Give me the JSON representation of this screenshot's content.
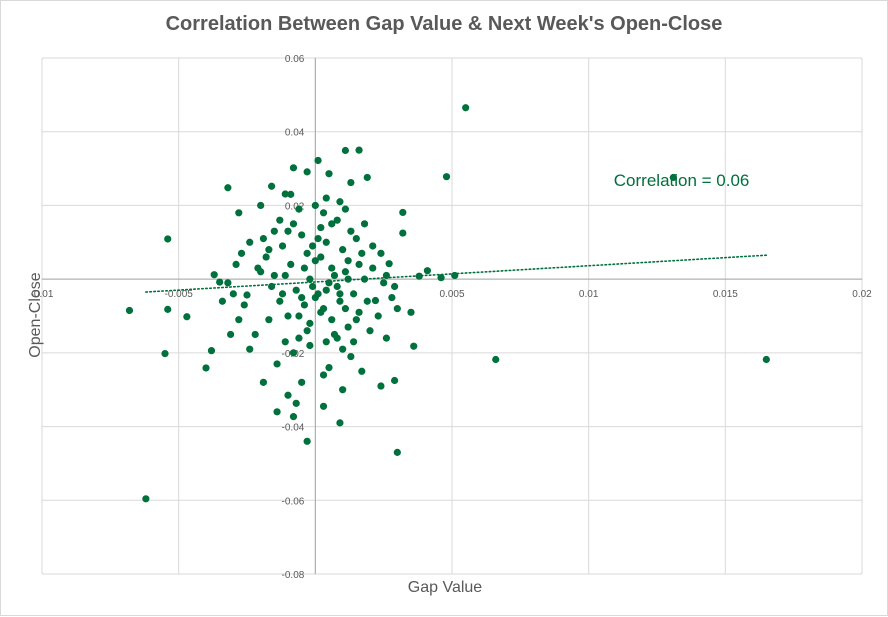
{
  "chart_data": {
    "type": "scatter",
    "title": "Correlation Between Gap Value & Next Week's Open-Close",
    "xlabel": "Gap Value",
    "ylabel": "Open-Close",
    "xlim": [
      -0.01,
      0.02
    ],
    "ylim": [
      -0.08,
      0.06
    ],
    "x_ticks": [
      -0.01,
      -0.005,
      0,
      0.005,
      0.01,
      0.015,
      0.02
    ],
    "x_tick_labels": [
      "-0.01",
      "-0.005",
      "",
      "0.005",
      "0.01",
      "0.015",
      "0.02"
    ],
    "y_ticks": [
      -0.08,
      -0.06,
      -0.04,
      -0.02,
      0,
      0.02,
      0.04,
      0.06
    ],
    "y_tick_labels": [
      "-0.08",
      "-0.06",
      "-0.04",
      "-0.02",
      "",
      "0.02",
      "0.04",
      "0.06"
    ],
    "grid": true,
    "legend": "none",
    "marker_color": "#00703c",
    "trendline": {
      "type": "linear",
      "style": "dotted",
      "points": [
        [
          -0.0062,
          -0.0035
        ],
        [
          0.0165,
          0.0065
        ]
      ]
    },
    "annotation": {
      "text": "Correlation = 0.06",
      "x": 0.0134,
      "y": 0.0253
    },
    "series": [
      {
        "points": [
          [
            0.0055,
            0.0465
          ],
          [
            0.0048,
            0.0278
          ],
          [
            0.0131,
            0.0276
          ],
          [
            0.0011,
            0.0349
          ],
          [
            0.0016,
            0.035
          ],
          [
            0.0001,
            0.0322
          ],
          [
            -0.0008,
            0.0302
          ],
          [
            -0.0003,
            0.0291
          ],
          [
            0.0005,
            0.0286
          ],
          [
            0.0019,
            0.0276
          ],
          [
            -0.0032,
            0.0248
          ],
          [
            -0.0016,
            0.0252
          ],
          [
            -0.0011,
            0.0231
          ],
          [
            0.0013,
            0.0262
          ],
          [
            0.0032,
            0.0181
          ],
          [
            -0.0054,
            0.0109
          ],
          [
            -0.0068,
            -0.0085
          ],
          [
            -0.0054,
            -0.0082
          ],
          [
            -0.0047,
            -0.0102
          ],
          [
            -0.0055,
            -0.0202
          ],
          [
            -0.0038,
            -0.0194
          ],
          [
            -0.004,
            -0.0241
          ],
          [
            -0.0062,
            -0.0596
          ],
          [
            0.0066,
            -0.0218
          ],
          [
            0.0165,
            -0.0218
          ],
          [
            0.003,
            -0.047
          ],
          [
            -0.0003,
            -0.044
          ],
          [
            0.0009,
            -0.039
          ],
          [
            -0.0014,
            -0.036
          ],
          [
            -0.0008,
            -0.0373
          ],
          [
            0.0003,
            -0.0345
          ],
          [
            -0.0007,
            -0.0337
          ],
          [
            0.0029,
            -0.0275
          ],
          [
            0.0024,
            -0.029
          ],
          [
            -0.001,
            -0.0315
          ],
          [
            0.0036,
            -0.0182
          ],
          [
            0.0035,
            -0.009
          ],
          [
            0.0022,
            -0.0058
          ],
          [
            0.0029,
            -0.002
          ],
          [
            0.0038,
            0.0008
          ],
          [
            0.0046,
            0.0004
          ],
          [
            0.0051,
            0.001
          ],
          [
            0.0041,
            0.0023
          ],
          [
            0.0027,
            0.0042
          ],
          [
            0.0032,
            0.0125
          ],
          [
            -0.0028,
            0.018
          ],
          [
            -0.0024,
            0.01
          ],
          [
            -0.0037,
            0.0012
          ],
          [
            -0.0035,
            -0.0008
          ],
          [
            -0.0025,
            -0.0043
          ],
          [
            -0.0008,
            0.015
          ],
          [
            -0.0015,
            0.013
          ],
          [
            -0.0005,
            0.012
          ],
          [
            0.0002,
            0.014
          ],
          [
            0.0008,
            0.016
          ],
          [
            -0.0012,
            0.009
          ],
          [
            -0.0003,
            0.007
          ],
          [
            0.0004,
            0.01
          ],
          [
            0.001,
            0.008
          ],
          [
            0.0015,
            0.011
          ],
          [
            -0.0018,
            0.006
          ],
          [
            -0.0009,
            0.004
          ],
          [
            0.0,
            0.005
          ],
          [
            0.0006,
            0.003
          ],
          [
            0.0012,
            0.005
          ],
          [
            -0.002,
            0.002
          ],
          [
            -0.0011,
            0.001
          ],
          [
            -0.0002,
            0.0
          ],
          [
            0.0005,
            -0.001
          ],
          [
            0.0011,
            0.002
          ],
          [
            0.0018,
            0.0
          ],
          [
            -0.0016,
            -0.002
          ],
          [
            -0.0007,
            -0.003
          ],
          [
            0.0001,
            -0.004
          ],
          [
            0.0008,
            -0.002
          ],
          [
            0.0014,
            -0.004
          ],
          [
            -0.0013,
            -0.006
          ],
          [
            -0.0004,
            -0.007
          ],
          [
            0.0003,
            -0.008
          ],
          [
            0.0009,
            -0.006
          ],
          [
            0.0016,
            -0.009
          ],
          [
            -0.001,
            -0.01
          ],
          [
            -0.0002,
            -0.012
          ],
          [
            0.0006,
            -0.011
          ],
          [
            0.0012,
            -0.013
          ],
          [
            -0.0022,
            -0.015
          ],
          [
            -0.0006,
            -0.016
          ],
          [
            0.0004,
            -0.017
          ],
          [
            0.001,
            -0.019
          ],
          [
            0.002,
            -0.014
          ],
          [
            -0.0017,
            -0.011
          ],
          [
            -0.0026,
            -0.007
          ],
          [
            -0.003,
            -0.004
          ],
          [
            -0.0021,
            0.003
          ],
          [
            -0.0027,
            0.007
          ],
          [
            0.0024,
            0.007
          ],
          [
            0.0021,
            0.003
          ],
          [
            0.0025,
            -0.001
          ],
          [
            0.0019,
            -0.006
          ],
          [
            0.0023,
            -0.01
          ],
          [
            0.0,
            0.02
          ],
          [
            0.0003,
            0.018
          ],
          [
            -0.0006,
            0.019
          ],
          [
            0.0009,
            0.021
          ],
          [
            -0.0013,
            0.016
          ],
          [
            -0.0001,
            0.009
          ],
          [
            0.0002,
            0.006
          ],
          [
            -0.0004,
            0.003
          ],
          [
            0.0007,
            0.001
          ],
          [
            0.0,
            -0.005
          ],
          [
            0.0002,
            -0.009
          ],
          [
            -0.0003,
            -0.014
          ],
          [
            0.0007,
            -0.015
          ],
          [
            -0.0008,
            -0.02
          ],
          [
            0.0013,
            -0.021
          ],
          [
            -0.0014,
            -0.023
          ],
          [
            0.0005,
            -0.024
          ],
          [
            0.0017,
            -0.025
          ],
          [
            -0.0019,
            -0.028
          ],
          [
            0.001,
            -0.03
          ],
          [
            0.0003,
            -0.026
          ],
          [
            -0.0005,
            -0.028
          ],
          [
            0.0014,
            -0.017
          ],
          [
            -0.0024,
            -0.019
          ],
          [
            0.0018,
            0.015
          ],
          [
            -0.0019,
            0.011
          ],
          [
            0.0021,
            0.009
          ],
          [
            -0.0029,
            0.004
          ],
          [
            0.0026,
            0.001
          ],
          [
            -0.0032,
            -0.001
          ],
          [
            0.0028,
            -0.005
          ],
          [
            -0.0034,
            -0.006
          ],
          [
            0.003,
            -0.008
          ],
          [
            -0.0028,
            -0.011
          ],
          [
            -0.0031,
            -0.015
          ],
          [
            0.0026,
            -0.016
          ],
          [
            -0.0009,
            0.023
          ],
          [
            0.0004,
            0.022
          ],
          [
            0.0011,
            0.019
          ],
          [
            -0.002,
            0.02
          ],
          [
            -0.0015,
            0.001
          ],
          [
            0.0016,
            0.004
          ],
          [
            -0.0006,
            -0.01
          ],
          [
            0.0011,
            -0.008
          ],
          [
            0.0001,
            0.011
          ],
          [
            -0.001,
            0.013
          ],
          [
            0.0006,
            0.015
          ],
          [
            0.0013,
            0.013
          ],
          [
            -0.0017,
            0.008
          ],
          [
            0.0017,
            0.007
          ],
          [
            -0.0001,
            -0.002
          ],
          [
            0.0004,
            -0.003
          ],
          [
            -0.0005,
            -0.005
          ],
          [
            0.0009,
            -0.004
          ],
          [
            -0.0012,
            -0.004
          ],
          [
            0.0015,
            -0.011
          ],
          [
            -0.0002,
            -0.018
          ],
          [
            0.0008,
            -0.016
          ],
          [
            -0.0011,
            -0.017
          ],
          [
            0.0012,
            0.0
          ]
        ]
      }
    ]
  }
}
